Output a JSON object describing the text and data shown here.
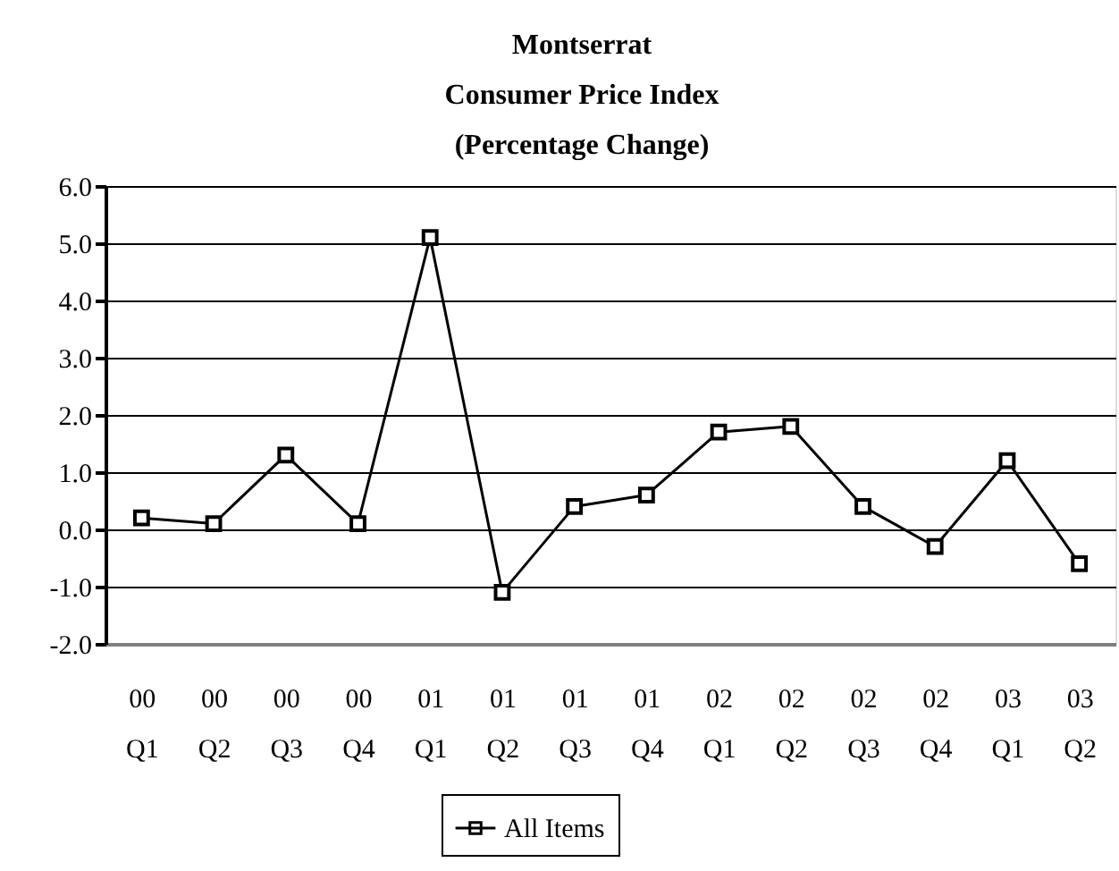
{
  "chart_data": {
    "type": "line",
    "title": "Montserrat\nConsumer Price Index\n(Percentage Change)",
    "categories": [
      "00 Q1",
      "00 Q2",
      "00 Q3",
      "00 Q4",
      "01 Q1",
      "01 Q2",
      "01 Q3",
      "01 Q4",
      "02 Q1",
      "02 Q2",
      "02 Q3",
      "02 Q4",
      "03 Q1",
      "03 Q2"
    ],
    "series": [
      {
        "name": "All Items",
        "color": "#000000",
        "values": [
          0.2,
          0.1,
          1.3,
          0.1,
          5.1,
          -1.1,
          0.4,
          0.6,
          1.7,
          1.8,
          0.4,
          -0.3,
          1.2,
          -0.6
        ]
      }
    ],
    "ylim": [
      -2,
      6
    ],
    "yticks": [
      {
        "value": -2,
        "label": "-2.0"
      },
      {
        "value": -1,
        "label": "-1.0"
      },
      {
        "value": 0,
        "label": "0.0"
      },
      {
        "value": 1,
        "label": "1.0"
      },
      {
        "value": 2,
        "label": "2.0"
      },
      {
        "value": 3,
        "label": "3.0"
      },
      {
        "value": 4,
        "label": "4.0"
      },
      {
        "value": 5,
        "label": "5.0"
      },
      {
        "value": 6,
        "label": "6.0"
      }
    ],
    "grid": "y",
    "legend": "bottom",
    "marker": "square",
    "line_style": "solid"
  }
}
